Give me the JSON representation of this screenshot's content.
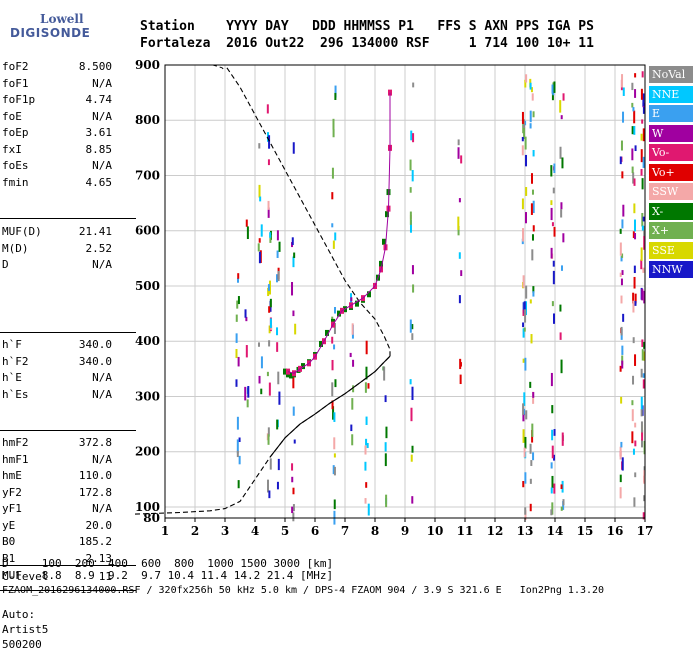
{
  "logo": {
    "line1": "Lowell",
    "line2": "DIGISONDE"
  },
  "header": {
    "line1": "Station    YYYY DAY   DDD HHMMSS P1   FFS S AXN PPS IGA PS",
    "line2": "Fortaleza  2016 Out22  296 134000 RSF     1 714 100 10+ 11"
  },
  "params_group1": [
    {
      "k": "foF2",
      "v": "8.500"
    },
    {
      "k": "foF1",
      "v": "N/A"
    },
    {
      "k": "foF1p",
      "v": "4.74"
    },
    {
      "k": "foE",
      "v": "N/A"
    },
    {
      "k": "foEp",
      "v": "3.61"
    },
    {
      "k": "fxI",
      "v": "8.85"
    },
    {
      "k": "foEs",
      "v": "N/A"
    },
    {
      "k": "fmin",
      "v": "4.65"
    }
  ],
  "params_group2": [
    {
      "k": "MUF(D)",
      "v": "21.41"
    },
    {
      "k": "M(D)",
      "v": "2.52"
    },
    {
      "k": "D",
      "v": "N/A"
    }
  ],
  "params_group3": [
    {
      "k": "h`F",
      "v": "340.0"
    },
    {
      "k": "h`F2",
      "v": "340.0"
    },
    {
      "k": "h`E",
      "v": "N/A"
    },
    {
      "k": "h`Es",
      "v": "N/A"
    }
  ],
  "params_group4": [
    {
      "k": "hmF2",
      "v": "372.8"
    },
    {
      "k": "hmF1",
      "v": "N/A"
    },
    {
      "k": "hmE",
      "v": "110.0"
    },
    {
      "k": "yF2",
      "v": "172.8"
    },
    {
      "k": "yF1",
      "v": "N/A"
    },
    {
      "k": "yE",
      "v": "20.0"
    },
    {
      "k": "B0",
      "v": "185.2"
    },
    {
      "k": "B1",
      "v": "2.13"
    }
  ],
  "params_group5": [
    {
      "k": "C-level",
      "v": "11"
    }
  ],
  "auto": {
    "l1": "Auto:",
    "l2": "Artist5",
    "l3": "500200"
  },
  "legend": [
    {
      "label": "NoVal",
      "color": "#8c8c8c"
    },
    {
      "label": "NNE",
      "color": "#00c8ff"
    },
    {
      "label": "E",
      "color": "#3aa0f0"
    },
    {
      "label": "W",
      "color": "#a000a0"
    },
    {
      "label": "Vo-",
      "color": "#e01870"
    },
    {
      "label": "Vo+",
      "color": "#e00000"
    },
    {
      "label": "SSW",
      "color": "#f4a8a8"
    },
    {
      "label": "X-",
      "color": "#007800"
    },
    {
      "label": "X+",
      "color": "#70b050"
    },
    {
      "label": "SSE",
      "color": "#d8d800"
    },
    {
      "label": "NNW",
      "color": "#1818c8"
    }
  ],
  "bottom": {
    "line1": "D     100  200  400  600  800  1000 1500 3000 [km]",
    "line2": "MUF   8.8  8.9  9.2  9.7 10.4 11.4 14.2 21.4 [MHz]"
  },
  "footer": "FZAOM_2016296134000.RSF / 320fx256h 50 kHz 5.0 km / DPS-4 FZAOM 904 / 3.9 S 321.6 E   Ion2Png 1.3.20",
  "chart_data": {
    "type": "scatter",
    "xlim": [
      1,
      17
    ],
    "ylim": [
      80,
      900
    ],
    "x_ticks": [
      1,
      2,
      3,
      4,
      5,
      6,
      7,
      8,
      9,
      10,
      11,
      12,
      13,
      14,
      15,
      16,
      17
    ],
    "y_ticks": [
      100,
      200,
      300,
      400,
      500,
      600,
      700,
      800,
      900
    ],
    "y_bottom_label": "80",
    "grid": true,
    "trace_x_mode": [
      [
        5.0,
        345
      ],
      [
        5.1,
        340
      ],
      [
        5.2,
        338
      ],
      [
        5.3,
        340
      ],
      [
        5.45,
        348
      ],
      [
        5.6,
        355
      ],
      [
        5.8,
        362
      ],
      [
        6.0,
        375
      ],
      [
        6.2,
        395
      ],
      [
        6.4,
        415
      ],
      [
        6.6,
        435
      ],
      [
        6.8,
        450
      ],
      [
        7.0,
        458
      ],
      [
        7.2,
        462
      ],
      [
        7.4,
        468
      ],
      [
        7.6,
        475
      ],
      [
        7.8,
        485
      ],
      [
        8.0,
        500
      ],
      [
        8.1,
        515
      ],
      [
        8.2,
        540
      ],
      [
        8.3,
        580
      ],
      [
        8.4,
        630
      ],
      [
        8.45,
        670
      ]
    ],
    "trace_o_mode": [
      [
        5.1,
        345
      ],
      [
        5.3,
        342
      ],
      [
        5.5,
        350
      ],
      [
        5.8,
        360
      ],
      [
        6.0,
        372
      ],
      [
        6.3,
        400
      ],
      [
        6.6,
        430
      ],
      [
        6.9,
        455
      ],
      [
        7.2,
        465
      ],
      [
        7.6,
        478
      ],
      [
        8.0,
        500
      ],
      [
        8.2,
        530
      ],
      [
        8.35,
        570
      ],
      [
        8.45,
        640
      ],
      [
        8.5,
        750
      ],
      [
        8.5,
        850
      ]
    ],
    "true_height_profile": [
      [
        0.0,
        87
      ],
      [
        1.5,
        90
      ],
      [
        2.5,
        93
      ],
      [
        3.0,
        97
      ],
      [
        3.5,
        110
      ],
      [
        4.0,
        150
      ],
      [
        4.5,
        190
      ],
      [
        5.0,
        225
      ],
      [
        5.5,
        250
      ],
      [
        6.0,
        268
      ],
      [
        6.5,
        288
      ],
      [
        7.0,
        305
      ],
      [
        7.5,
        325
      ],
      [
        8.0,
        345
      ],
      [
        8.3,
        362
      ],
      [
        8.5,
        372.8
      ]
    ],
    "extrapolated_profile": [
      [
        8.5,
        372.8
      ],
      [
        8.5,
        385
      ],
      [
        8.3,
        410
      ],
      [
        8.0,
        440
      ],
      [
        7.5,
        470
      ],
      [
        7.0,
        510
      ],
      [
        6.5,
        560
      ],
      [
        6.0,
        610
      ],
      [
        5.5,
        660
      ],
      [
        5.0,
        710
      ],
      [
        4.5,
        760
      ],
      [
        4.0,
        810
      ],
      [
        3.5,
        860
      ],
      [
        3.0,
        900
      ]
    ],
    "small_arc": [
      [
        2.6,
        900
      ],
      [
        2.9,
        895
      ],
      [
        3.0,
        890
      ]
    ],
    "echo_columns": [
      {
        "x": 3.4,
        "ymin": 120,
        "ymax": 720,
        "density": 0.35
      },
      {
        "x": 3.7,
        "ymin": 200,
        "ymax": 640,
        "density": 0.3
      },
      {
        "x": 4.15,
        "ymin": 300,
        "ymax": 880,
        "density": 0.3
      },
      {
        "x": 4.45,
        "ymin": 90,
        "ymax": 860,
        "density": 0.5
      },
      {
        "x": 4.75,
        "ymin": 120,
        "ymax": 620,
        "density": 0.4
      },
      {
        "x": 5.25,
        "ymin": 90,
        "ymax": 880,
        "density": 0.3
      },
      {
        "x": 6.6,
        "ymin": 90,
        "ymax": 890,
        "density": 0.45
      },
      {
        "x": 7.2,
        "ymin": 90,
        "ymax": 500,
        "density": 0.35
      },
      {
        "x": 7.7,
        "ymin": 90,
        "ymax": 460,
        "density": 0.45
      },
      {
        "x": 8.3,
        "ymin": 90,
        "ymax": 360,
        "density": 0.4
      },
      {
        "x": 9.2,
        "ymin": 100,
        "ymax": 890,
        "density": 0.35
      },
      {
        "x": 10.8,
        "ymin": 200,
        "ymax": 780,
        "density": 0.3
      },
      {
        "x": 12.95,
        "ymin": 90,
        "ymax": 890,
        "density": 0.75
      },
      {
        "x": 13.2,
        "ymin": 90,
        "ymax": 890,
        "density": 0.5
      },
      {
        "x": 13.9,
        "ymin": 90,
        "ymax": 880,
        "density": 0.55
      },
      {
        "x": 14.2,
        "ymin": 90,
        "ymax": 860,
        "density": 0.35
      },
      {
        "x": 16.2,
        "ymin": 90,
        "ymax": 890,
        "density": 0.6
      },
      {
        "x": 16.6,
        "ymin": 90,
        "ymax": 890,
        "density": 0.6
      },
      {
        "x": 16.9,
        "ymin": 90,
        "ymax": 890,
        "density": 0.75
      }
    ]
  }
}
